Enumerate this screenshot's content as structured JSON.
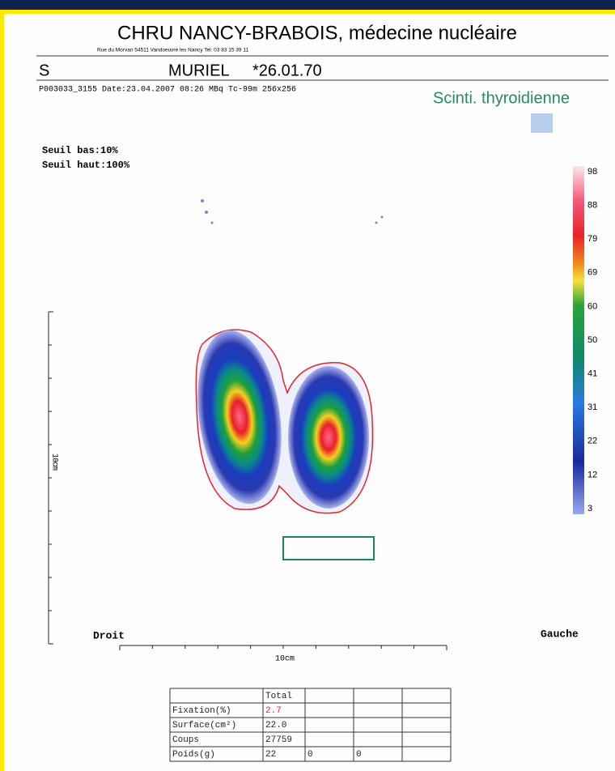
{
  "header": {
    "title": "CHRU NANCY-BRABOIS, médecine nucléaire",
    "address": "Rue du Morvan 54511 Vandoeuvre les Nancy Tel: 03 83 15 39 11"
  },
  "patient": {
    "initial": "S",
    "name": "MURIEL",
    "birth": "*26.01.70",
    "info": "P003033_3155 Date:23.04.2007 08:26  MBq Tc-99m 256x256"
  },
  "exam": "Scinti. thyroidienne",
  "thresholds": [
    "Seuil bas:10%",
    "Seuil haut:100%"
  ],
  "scale": [
    "98",
    "88",
    "79",
    "69",
    "60",
    "50",
    "41",
    "31",
    "22",
    "12",
    "3"
  ],
  "vertical_ruler": "10cm",
  "sides": {
    "left": "Droit",
    "right": "Gauche"
  },
  "horizontal_ruler": "10cm",
  "table": {
    "header": "Total",
    "rows": [
      {
        "label": "Fixation(%)",
        "values": [
          "2.7"
        ]
      },
      {
        "label": "Surface(cm²)",
        "values": [
          "22.0"
        ]
      },
      {
        "label": "Coups",
        "values": [
          "27759"
        ]
      },
      {
        "label": "Poids(g)",
        "values": [
          "22",
          "0",
          "0"
        ]
      }
    ]
  }
}
